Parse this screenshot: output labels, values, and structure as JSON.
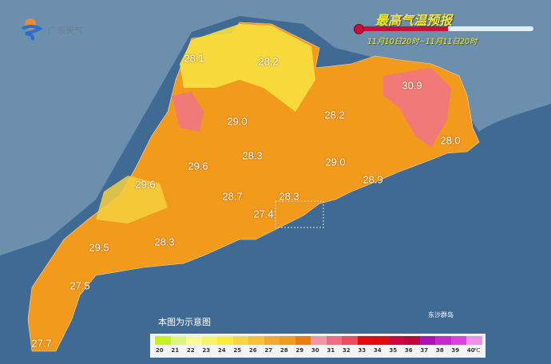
{
  "header": {
    "title": "最高气温预报",
    "period": "11月10日20时~11月11日20时",
    "logo_text": "广东天气",
    "logo_icon": "sun-wave-logo-icon"
  },
  "note": "本图为示意图",
  "islands_label": "东沙群岛",
  "colors": {
    "sea": "#3f6a93",
    "land_outside": "#6d8fae",
    "accent": "#c8103a"
  },
  "legend": {
    "unit": "℃",
    "items": [
      {
        "value": "20",
        "color": "#c6f11e"
      },
      {
        "value": "21",
        "color": "#dcf57e"
      },
      {
        "value": "22",
        "color": "#fafa96"
      },
      {
        "value": "23",
        "color": "#f8f266"
      },
      {
        "value": "24",
        "color": "#f7ec3a"
      },
      {
        "value": "25",
        "color": "#f6d63e"
      },
      {
        "value": "26",
        "color": "#f4c134"
      },
      {
        "value": "27",
        "color": "#f2aa2e"
      },
      {
        "value": "28",
        "color": "#f29a1c"
      },
      {
        "value": "29",
        "color": "#ea7c12"
      },
      {
        "value": "30",
        "color": "#f494a4"
      },
      {
        "value": "31",
        "color": "#f26c80"
      },
      {
        "value": "32",
        "color": "#ee4a60"
      },
      {
        "value": "33",
        "color": "#e60a10"
      },
      {
        "value": "34",
        "color": "#e20a10"
      },
      {
        "value": "35",
        "color": "#cc0840"
      },
      {
        "value": "36",
        "color": "#c0063c"
      },
      {
        "value": "37",
        "color": "#b010b8"
      },
      {
        "value": "38",
        "color": "#c82ac8"
      },
      {
        "value": "39",
        "color": "#e040e0"
      },
      {
        "value": "40",
        "color": "#f090ec"
      }
    ]
  },
  "labels": [
    {
      "text": "28.1"
    },
    {
      "text": "28.2"
    },
    {
      "text": "30.9"
    },
    {
      "text": "29.0"
    },
    {
      "text": "28.2"
    },
    {
      "text": "28.0"
    },
    {
      "text": "28.3"
    },
    {
      "text": "29.0"
    },
    {
      "text": "29.6"
    },
    {
      "text": "29.6"
    },
    {
      "text": "28.9"
    },
    {
      "text": "28.7"
    },
    {
      "text": "28.3"
    },
    {
      "text": "27.4"
    },
    {
      "text": "29.5"
    },
    {
      "text": "28.3"
    },
    {
      "text": "27.5"
    },
    {
      "text": "27.7"
    }
  ]
}
